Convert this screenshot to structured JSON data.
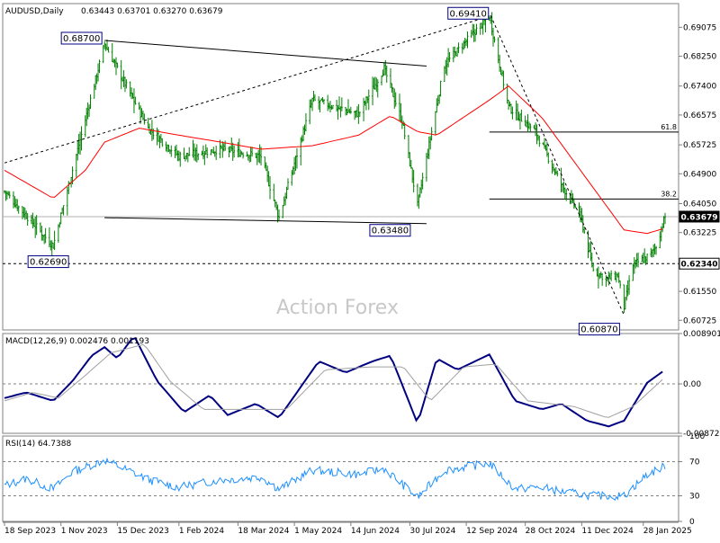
{
  "chart_data": [
    {
      "type": "candlestick",
      "panel": "price",
      "symbol": "AUDUSD,Daily",
      "ohlc_label": "0.63443 0.63701 0.63270 0.63679",
      "watermark": "Action Forex",
      "ylim": [
        0.6045,
        0.6975
      ],
      "y_ticks": [
        "0.69075",
        "0.68250",
        "0.67400",
        "0.66575",
        "0.65725",
        "0.64900",
        "0.64050",
        "0.63225",
        "0.61550",
        "0.60725"
      ],
      "current_price_label": "0.63679",
      "current_price": 0.63679,
      "support_line_label": "0.62340",
      "support_line": 0.6234,
      "fib_levels": [
        {
          "label": "61.8",
          "value": 0.6609
        },
        {
          "label": "38.2",
          "value": 0.6418
        }
      ],
      "annotations": [
        {
          "label": "0.68700",
          "date": "2023-12-05",
          "value": 0.687
        },
        {
          "label": "0.69410",
          "date": "2024-09-30",
          "value": 0.6941
        },
        {
          "label": "0.62690",
          "date": "2023-10-26",
          "value": 0.6269
        },
        {
          "label": "0.63480",
          "date": "2024-08-05",
          "value": 0.6348
        },
        {
          "label": "0.60870",
          "date": "2025-01-13",
          "value": 0.6087
        }
      ],
      "trendlines": [
        {
          "from": [
            "2023-09-18",
            0.6521
          ],
          "to": [
            "2024-10-01",
            0.694
          ]
        },
        {
          "from": [
            "2023-12-05",
            0.687
          ],
          "to": [
            "2024-08-12",
            0.6797
          ]
        },
        {
          "from": [
            "2023-12-05",
            0.6365
          ],
          "to": [
            "2024-08-12",
            0.6348
          ]
        },
        {
          "from": [
            "2024-10-01",
            0.6941
          ],
          "to": [
            "2025-01-13",
            0.6087
          ]
        }
      ],
      "key_points": [
        {
          "date": "2023-09-18",
          "value": 0.644
        },
        {
          "date": "2023-10-26",
          "value": 0.6285
        },
        {
          "date": "2023-12-05",
          "value": 0.686
        },
        {
          "date": "2024-01-08",
          "value": 0.662
        },
        {
          "date": "2024-02-01",
          "value": 0.654
        },
        {
          "date": "2024-03-05",
          "value": 0.656
        },
        {
          "date": "2024-04-05",
          "value": 0.654
        },
        {
          "date": "2024-04-19",
          "value": 0.6365
        },
        {
          "date": "2024-05-15",
          "value": 0.67
        },
        {
          "date": "2024-06-20",
          "value": 0.666
        },
        {
          "date": "2024-07-10",
          "value": 0.679
        },
        {
          "date": "2024-07-24",
          "value": 0.664
        },
        {
          "date": "2024-08-05",
          "value": 0.64
        },
        {
          "date": "2024-08-26",
          "value": 0.68
        },
        {
          "date": "2024-09-30",
          "value": 0.694
        },
        {
          "date": "2024-10-15",
          "value": 0.668
        },
        {
          "date": "2024-11-05",
          "value": 0.661
        },
        {
          "date": "2024-11-25",
          "value": 0.646
        },
        {
          "date": "2024-12-10",
          "value": 0.637
        },
        {
          "date": "2024-12-20",
          "value": 0.6215
        },
        {
          "date": "2024-12-31",
          "value": 0.619
        },
        {
          "date": "2025-01-08",
          "value": 0.62
        },
        {
          "date": "2025-01-13",
          "value": 0.611
        },
        {
          "date": "2025-01-20",
          "value": 0.623
        },
        {
          "date": "2025-02-03",
          "value": 0.626
        },
        {
          "date": "2025-02-07",
          "value": 0.6285
        },
        {
          "date": "2025-02-14",
          "value": 0.6368
        }
      ],
      "ma_points": [
        {
          "date": "2023-09-18",
          "value": 0.65
        },
        {
          "date": "2023-10-26",
          "value": 0.642
        },
        {
          "date": "2023-11-20",
          "value": 0.65
        },
        {
          "date": "2023-12-05",
          "value": 0.658
        },
        {
          "date": "2024-01-01",
          "value": 0.662
        },
        {
          "date": "2024-02-01",
          "value": 0.66
        },
        {
          "date": "2024-03-05",
          "value": 0.658
        },
        {
          "date": "2024-04-05",
          "value": 0.656
        },
        {
          "date": "2024-05-15",
          "value": 0.657
        },
        {
          "date": "2024-06-20",
          "value": 0.66
        },
        {
          "date": "2024-07-15",
          "value": 0.6655
        },
        {
          "date": "2024-08-05",
          "value": 0.661
        },
        {
          "date": "2024-08-20",
          "value": 0.66
        },
        {
          "date": "2024-09-30",
          "value": 0.67
        },
        {
          "date": "2024-10-15",
          "value": 0.674
        },
        {
          "date": "2024-11-10",
          "value": 0.665
        },
        {
          "date": "2024-12-10",
          "value": 0.65
        },
        {
          "date": "2025-01-13",
          "value": 0.633
        },
        {
          "date": "2025-01-31",
          "value": 0.632
        },
        {
          "date": "2025-02-14",
          "value": 0.6335
        }
      ]
    },
    {
      "type": "line",
      "panel": "macd",
      "label": "MACD(12,26,9) 0.002476 0.001193",
      "ylim": [
        -0.00873,
        0.0089
      ],
      "y_ticks": [
        "0.008901",
        "0.00",
        "-0.008729"
      ],
      "series": [
        {
          "name": "MACD",
          "color": "#000080",
          "points": [
            {
              "date": "2023-09-18",
              "value": -0.0025
            },
            {
              "date": "2023-10-05",
              "value": -0.0015
            },
            {
              "date": "2023-10-26",
              "value": -0.003
            },
            {
              "date": "2023-11-10",
              "value": 0.0005
            },
            {
              "date": "2023-11-25",
              "value": 0.005
            },
            {
              "date": "2023-12-05",
              "value": 0.0065
            },
            {
              "date": "2023-12-15",
              "value": 0.0045
            },
            {
              "date": "2023-12-28",
              "value": 0.0085
            },
            {
              "date": "2024-01-15",
              "value": 0.0005
            },
            {
              "date": "2024-02-05",
              "value": -0.005
            },
            {
              "date": "2024-02-25",
              "value": -0.002
            },
            {
              "date": "2024-03-10",
              "value": -0.0055
            },
            {
              "date": "2024-04-01",
              "value": -0.0035
            },
            {
              "date": "2024-04-19",
              "value": -0.006
            },
            {
              "date": "2024-05-20",
              "value": 0.004
            },
            {
              "date": "2024-06-10",
              "value": 0.002
            },
            {
              "date": "2024-07-01",
              "value": 0.004
            },
            {
              "date": "2024-07-15",
              "value": 0.005
            },
            {
              "date": "2024-08-05",
              "value": -0.007
            },
            {
              "date": "2024-08-20",
              "value": 0.0045
            },
            {
              "date": "2024-09-05",
              "value": 0.0025
            },
            {
              "date": "2024-09-30",
              "value": 0.0052
            },
            {
              "date": "2024-10-20",
              "value": -0.003
            },
            {
              "date": "2024-11-10",
              "value": -0.0045
            },
            {
              "date": "2024-11-25",
              "value": -0.0035
            },
            {
              "date": "2024-12-15",
              "value": -0.0065
            },
            {
              "date": "2025-01-01",
              "value": -0.0075
            },
            {
              "date": "2025-01-13",
              "value": -0.0065
            },
            {
              "date": "2025-01-31",
              "value": 0.0002
            },
            {
              "date": "2025-02-14",
              "value": 0.0025
            }
          ]
        },
        {
          "name": "Signal",
          "color": "#a0a0a0",
          "points": [
            {
              "date": "2023-09-18",
              "value": -0.003
            },
            {
              "date": "2023-10-10",
              "value": -0.0015
            },
            {
              "date": "2023-10-30",
              "value": -0.0025
            },
            {
              "date": "2023-11-20",
              "value": 0.0015
            },
            {
              "date": "2023-12-10",
              "value": 0.0055
            },
            {
              "date": "2024-01-05",
              "value": 0.007
            },
            {
              "date": "2024-01-25",
              "value": 0.0005
            },
            {
              "date": "2024-02-20",
              "value": -0.0045
            },
            {
              "date": "2024-03-20",
              "value": -0.0045
            },
            {
              "date": "2024-04-25",
              "value": -0.0045
            },
            {
              "date": "2024-05-25",
              "value": 0.0025
            },
            {
              "date": "2024-06-30",
              "value": 0.003
            },
            {
              "date": "2024-07-25",
              "value": 0.003
            },
            {
              "date": "2024-08-15",
              "value": -0.003
            },
            {
              "date": "2024-09-10",
              "value": 0.003
            },
            {
              "date": "2024-10-05",
              "value": 0.0035
            },
            {
              "date": "2024-10-30",
              "value": -0.003
            },
            {
              "date": "2024-12-05",
              "value": -0.004
            },
            {
              "date": "2024-12-31",
              "value": -0.006
            },
            {
              "date": "2025-01-20",
              "value": -0.004
            },
            {
              "date": "2025-02-14",
              "value": 0.0012
            }
          ]
        }
      ]
    },
    {
      "type": "line",
      "panel": "rsi",
      "label": "RSI(14) 64.7388",
      "ylim": [
        0,
        100
      ],
      "y_ticks": [
        "100",
        "70",
        "30",
        "0"
      ],
      "levels": [
        70,
        30
      ],
      "series": [
        {
          "name": "RSI",
          "color": "#1e90ff",
          "points": [
            {
              "date": "2023-09-18",
              "value": 42
            },
            {
              "date": "2023-10-05",
              "value": 50
            },
            {
              "date": "2023-10-26",
              "value": 38
            },
            {
              "date": "2023-11-10",
              "value": 58
            },
            {
              "date": "2023-12-05",
              "value": 72
            },
            {
              "date": "2023-12-20",
              "value": 62
            },
            {
              "date": "2024-01-10",
              "value": 48
            },
            {
              "date": "2024-02-01",
              "value": 40
            },
            {
              "date": "2024-03-01",
              "value": 48
            },
            {
              "date": "2024-04-05",
              "value": 52
            },
            {
              "date": "2024-04-19",
              "value": 38
            },
            {
              "date": "2024-05-15",
              "value": 60
            },
            {
              "date": "2024-06-20",
              "value": 55
            },
            {
              "date": "2024-07-10",
              "value": 62
            },
            {
              "date": "2024-08-05",
              "value": 28
            },
            {
              "date": "2024-08-26",
              "value": 60
            },
            {
              "date": "2024-09-30",
              "value": 68
            },
            {
              "date": "2024-10-20",
              "value": 38
            },
            {
              "date": "2024-11-10",
              "value": 40
            },
            {
              "date": "2024-11-25",
              "value": 35
            },
            {
              "date": "2024-12-20",
              "value": 30
            },
            {
              "date": "2025-01-13",
              "value": 30
            },
            {
              "date": "2025-01-31",
              "value": 55
            },
            {
              "date": "2025-02-14",
              "value": 64.7
            }
          ]
        }
      ]
    }
  ],
  "x_axis": {
    "start_date": "2023-09-18",
    "end_date": "2025-02-14",
    "tick_labels": [
      {
        "date": "2023-09-18",
        "label": "18 Sep 2023"
      },
      {
        "date": "2023-11-01",
        "label": "1 Nov 2023"
      },
      {
        "date": "2023-12-15",
        "label": "15 Dec 2023"
      },
      {
        "date": "2024-02-01",
        "label": "1 Feb 2024"
      },
      {
        "date": "2024-03-18",
        "label": "18 Mar 2024"
      },
      {
        "date": "2024-05-01",
        "label": "1 May 2024"
      },
      {
        "date": "2024-06-14",
        "label": "14 Jun 2024"
      },
      {
        "date": "2024-07-30",
        "label": "30 Jul 2024"
      },
      {
        "date": "2024-09-12",
        "label": "12 Sep 2024"
      },
      {
        "date": "2024-10-28",
        "label": "28 Oct 2024"
      },
      {
        "date": "2024-12-11",
        "label": "11 Dec 2024"
      },
      {
        "date": "2025-01-28",
        "label": "28 Jan 2025"
      }
    ]
  },
  "colors": {
    "candles": "#008000",
    "moving_average": "#ff0000",
    "macd": "#000080",
    "signal": "#a0a0a0",
    "rsi": "#1e90ff",
    "trendline": "#000000",
    "current_price_box": "#000000",
    "annotation_box_border": "#000080"
  }
}
